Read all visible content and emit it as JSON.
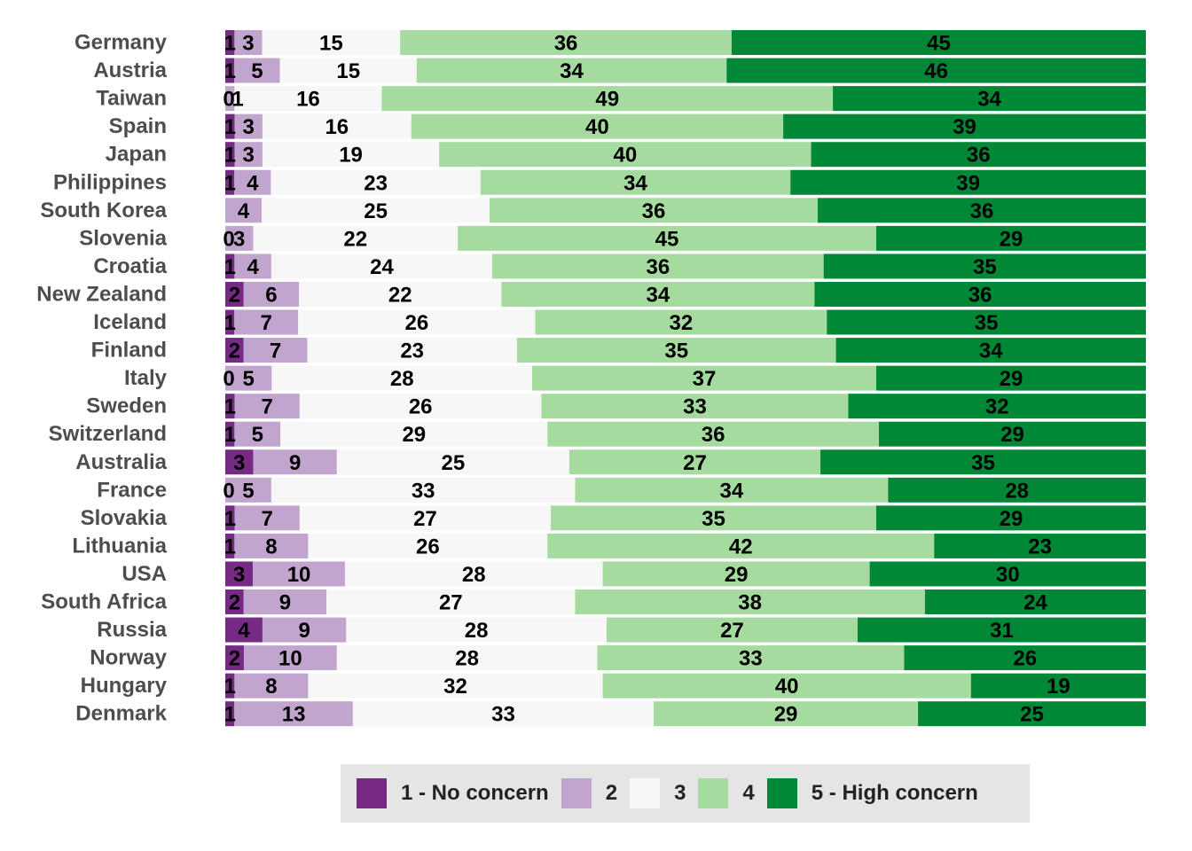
{
  "chart_data": {
    "type": "bar",
    "orientation": "horizontal",
    "stacked": true,
    "normalized_percent": true,
    "categories": [
      "Germany",
      "Austria",
      "Taiwan",
      "Spain",
      "Japan",
      "Philippines",
      "South Korea",
      "Slovenia",
      "Croatia",
      "New Zealand",
      "Iceland",
      "Finland",
      "Italy",
      "Sweden",
      "Switzerland",
      "Australia",
      "France",
      "Slovakia",
      "Lithuania",
      "USA",
      "South Africa",
      "Russia",
      "Norway",
      "Hungary",
      "Denmark"
    ],
    "series": [
      {
        "name": "1 - No concern",
        "color": "#762a83",
        "values": [
          1,
          1,
          0,
          1,
          1,
          1,
          0,
          0,
          1,
          2,
          1,
          2,
          0,
          1,
          1,
          3,
          0,
          1,
          1,
          3,
          2,
          4,
          2,
          1,
          1
        ]
      },
      {
        "name": "2",
        "color": "#c2a5cf",
        "values": [
          3,
          5,
          1,
          3,
          3,
          4,
          4,
          3,
          4,
          6,
          7,
          7,
          5,
          7,
          5,
          9,
          5,
          7,
          8,
          10,
          9,
          9,
          10,
          8,
          13
        ]
      },
      {
        "name": "3",
        "color": "#f7f7f7",
        "values": [
          15,
          15,
          16,
          16,
          19,
          23,
          25,
          22,
          24,
          22,
          26,
          23,
          28,
          26,
          29,
          25,
          33,
          27,
          26,
          28,
          27,
          28,
          28,
          32,
          33
        ]
      },
      {
        "name": "4",
        "color": "#a6dba0",
        "values": [
          36,
          34,
          49,
          40,
          40,
          34,
          36,
          45,
          36,
          34,
          32,
          35,
          37,
          33,
          36,
          27,
          34,
          35,
          42,
          29,
          38,
          27,
          33,
          40,
          29
        ]
      },
      {
        "name": "5 - High concern",
        "color": "#008837",
        "values": [
          45,
          46,
          34,
          39,
          36,
          39,
          36,
          29,
          35,
          36,
          35,
          34,
          29,
          32,
          29,
          35,
          28,
          29,
          23,
          30,
          24,
          31,
          26,
          19,
          25
        ]
      }
    ],
    "value_labels": [
      [
        "1",
        "3",
        "15",
        "36",
        "45"
      ],
      [
        "1",
        "5",
        "15",
        "34",
        "46"
      ],
      [
        "0",
        "1",
        "16",
        "49",
        "34"
      ],
      [
        "1",
        "3",
        "16",
        "40",
        "39"
      ],
      [
        "1",
        "3",
        "19",
        "40",
        "36"
      ],
      [
        "1",
        "4",
        "23",
        "34",
        "39"
      ],
      [
        "",
        "4",
        "25",
        "36",
        "36"
      ],
      [
        "0",
        "3",
        "22",
        "45",
        "29"
      ],
      [
        "1",
        "4",
        "24",
        "36",
        "35"
      ],
      [
        "2",
        "6",
        "22",
        "34",
        "36"
      ],
      [
        "1",
        "7",
        "26",
        "32",
        "35"
      ],
      [
        "2",
        "7",
        "23",
        "35",
        "34"
      ],
      [
        "0",
        "5",
        "28",
        "37",
        "29"
      ],
      [
        "1",
        "7",
        "26",
        "33",
        "32"
      ],
      [
        "1",
        "5",
        "29",
        "36",
        "29"
      ],
      [
        "3",
        "9",
        "25",
        "27",
        "35"
      ],
      [
        "0",
        "5",
        "33",
        "34",
        "28"
      ],
      [
        "1",
        "7",
        "27",
        "35",
        "29"
      ],
      [
        "1",
        "8",
        "26",
        "42",
        "23"
      ],
      [
        "3",
        "10",
        "28",
        "29",
        "30"
      ],
      [
        "2",
        "9",
        "27",
        "38",
        "24"
      ],
      [
        "4",
        "9",
        "28",
        "27",
        "31"
      ],
      [
        "2",
        "10",
        "28",
        "33",
        "26"
      ],
      [
        "1",
        "8",
        "32",
        "40",
        "19"
      ],
      [
        "1",
        "13",
        "33",
        "29",
        "25"
      ]
    ],
    "legend": {
      "position": "bottom",
      "items": [
        "1 - No concern",
        "2",
        "3",
        "4",
        "5 - High concern"
      ]
    },
    "grid": false,
    "title": "",
    "xlabel": "",
    "ylabel": ""
  }
}
